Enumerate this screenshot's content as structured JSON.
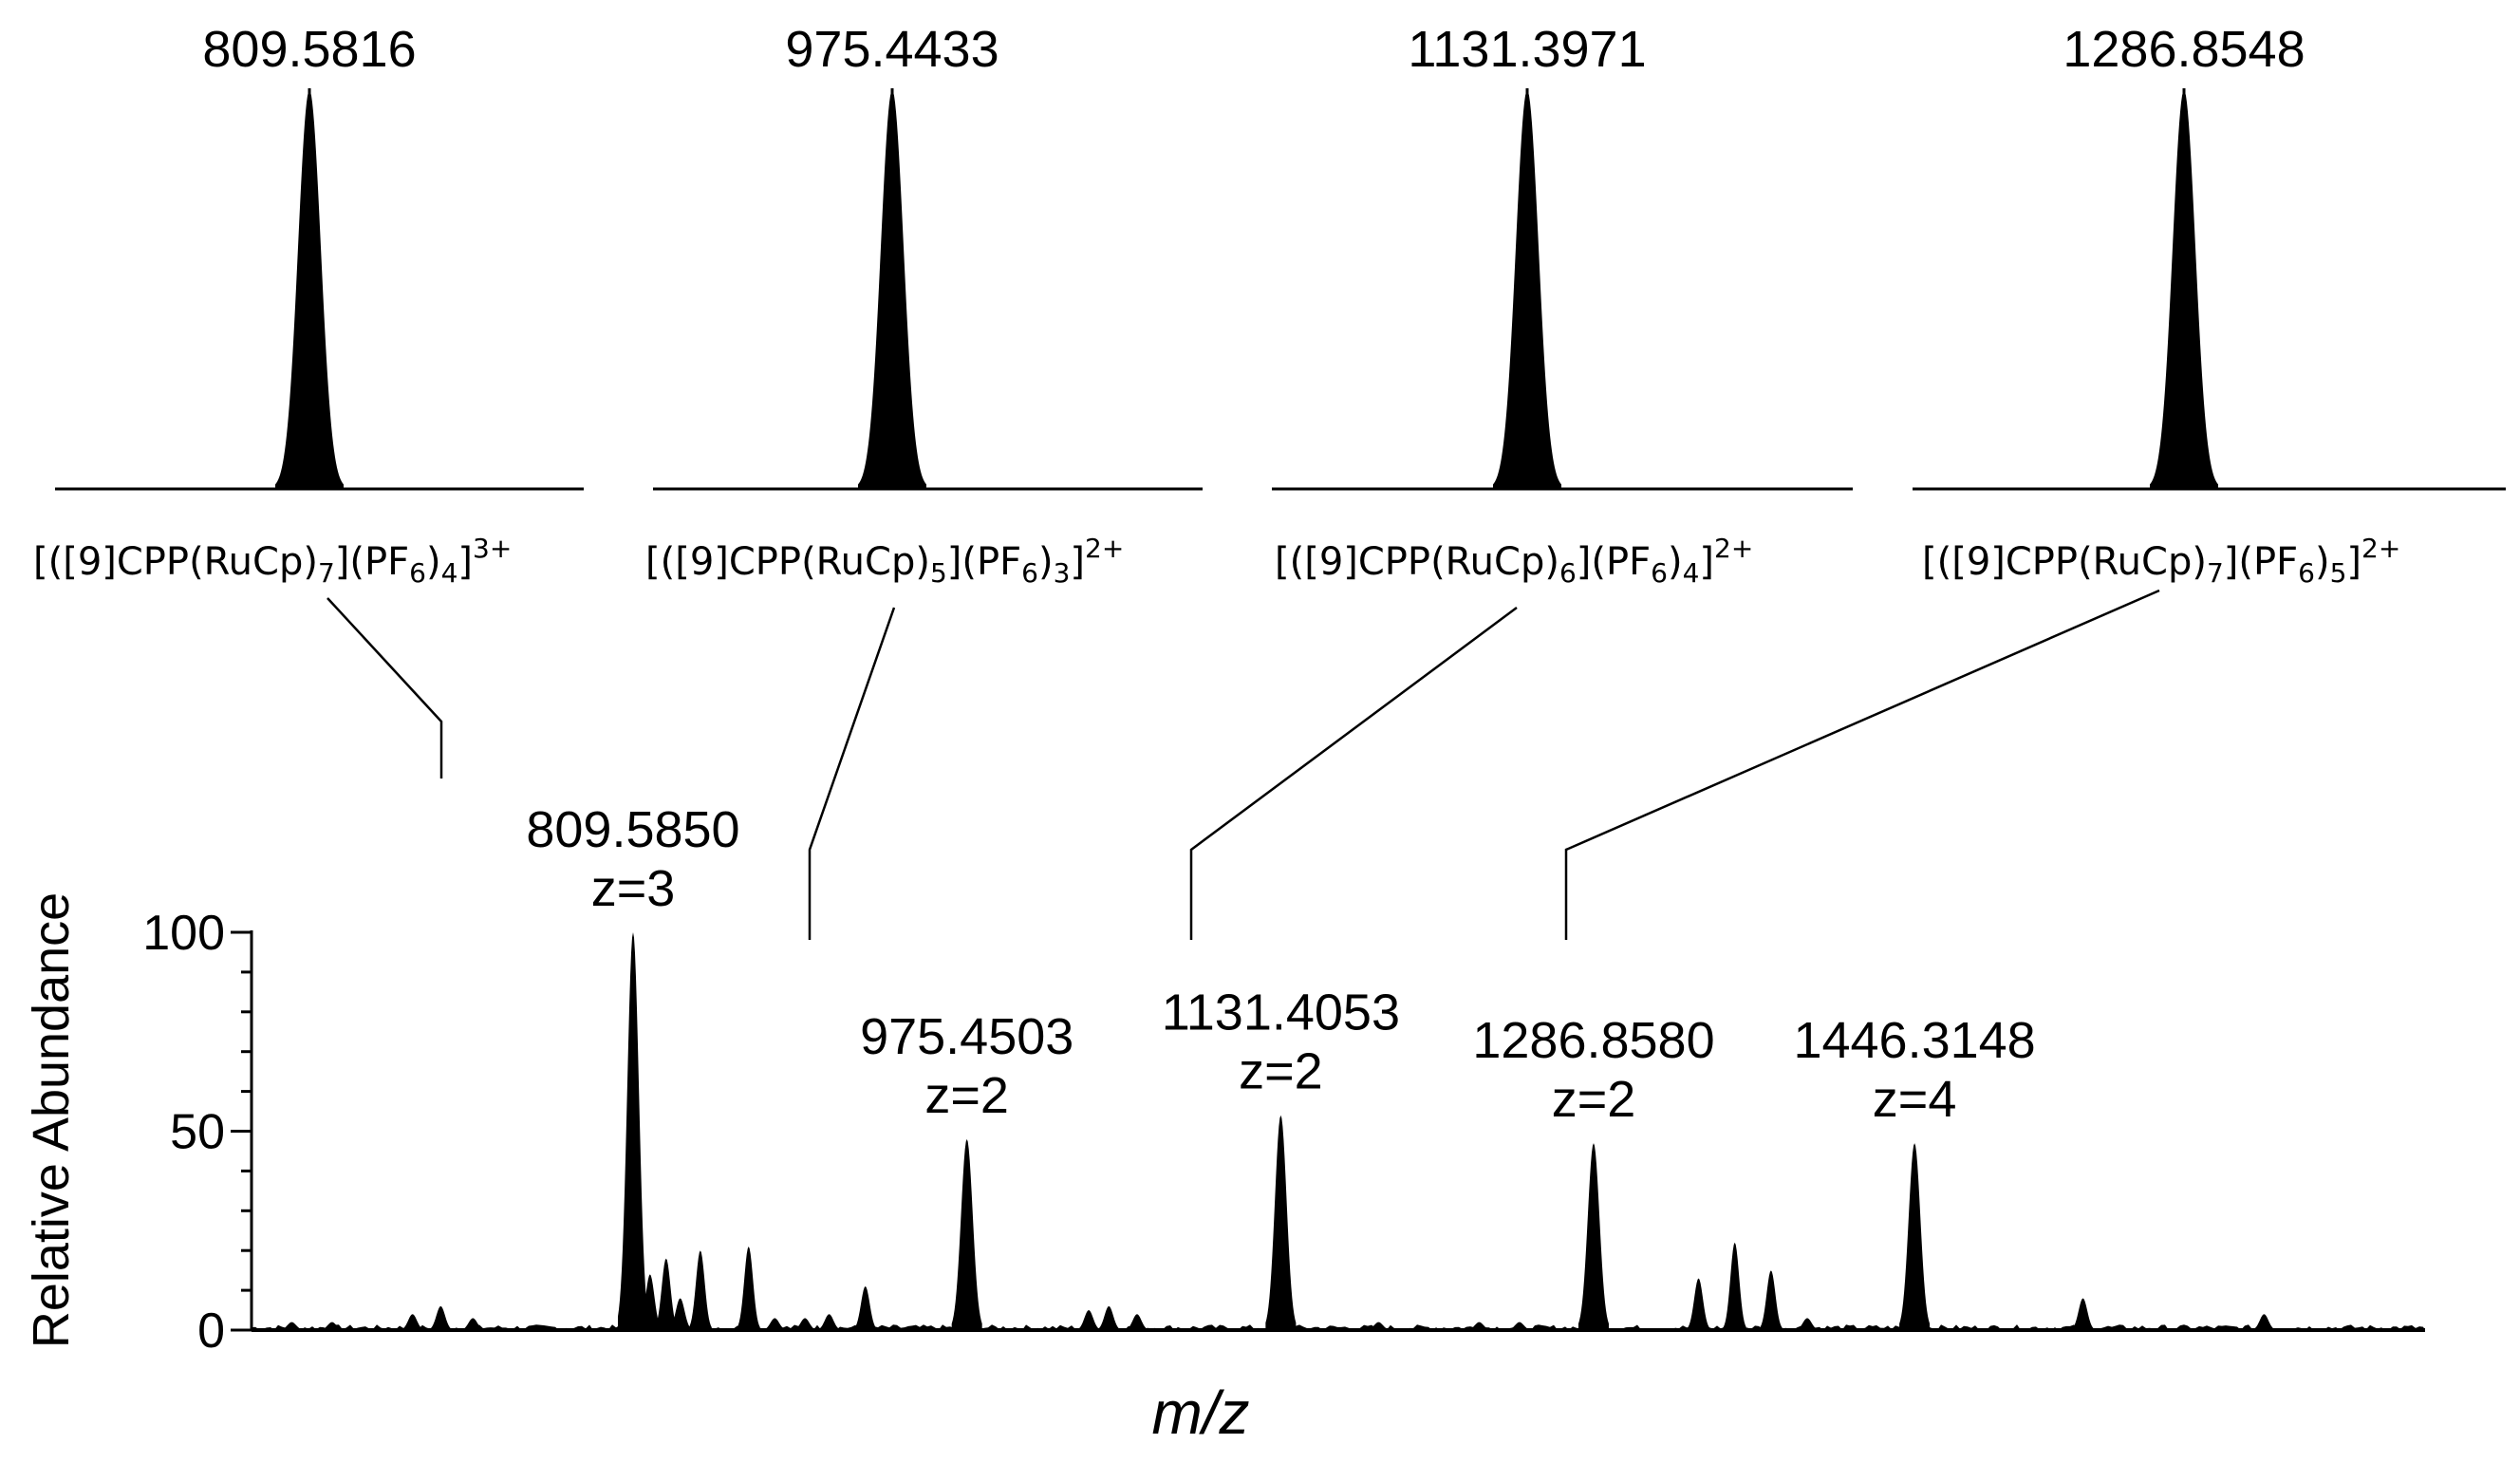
{
  "chart_data": [
    {
      "type": "line",
      "panel": "isotope-pattern",
      "peak_label": "809.5816",
      "peak_center": 809.5816,
      "formula": {
        "prefix": "[(",
        "bracket": "[9]CPP",
        "ru": "(RuCp)",
        "ru_sub": "7",
        "pf6_open": "](PF",
        "pf6_sub": "6",
        "pf6_close": ")",
        "pf6_count": "4",
        "end": "]",
        "charge": "3+"
      }
    },
    {
      "type": "line",
      "panel": "isotope-pattern",
      "peak_label": "975.4433",
      "peak_center": 975.4433,
      "formula": {
        "prefix": "[(",
        "bracket": "[9]CPP",
        "ru": "(RuCp)",
        "ru_sub": "5",
        "pf6_open": "](PF",
        "pf6_sub": "6",
        "pf6_close": ")",
        "pf6_count": "3",
        "end": "]",
        "charge": "2+"
      }
    },
    {
      "type": "line",
      "panel": "isotope-pattern",
      "peak_label": "1131.3971",
      "peak_center": 1131.3971,
      "formula": {
        "prefix": "[(",
        "bracket": "[9]CPP",
        "ru": "(RuCp)",
        "ru_sub": "6",
        "pf6_open": "](PF",
        "pf6_sub": "6",
        "pf6_close": ")",
        "pf6_count": "4",
        "end": "]",
        "charge": "2+"
      }
    },
    {
      "type": "line",
      "panel": "isotope-pattern",
      "peak_label": "1286.8548",
      "peak_center": 1286.8548,
      "formula": {
        "prefix": "[(",
        "bracket": "[9]CPP",
        "ru": "(RuCp)",
        "ru_sub": "7",
        "pf6_open": "](PF",
        "pf6_sub": "6",
        "pf6_close": ")",
        "pf6_count": "5",
        "end": "]",
        "charge": "2+"
      }
    },
    {
      "type": "line",
      "panel": "mass-spectrum",
      "xlabel": "m/z",
      "ylabel": "Relative Abundance",
      "ylim": [
        0,
        100
      ],
      "xlim": [
        620,
        1700
      ],
      "yticks": [
        {
          "value": 0,
          "label": "0"
        },
        {
          "value": 50,
          "label": "50"
        },
        {
          "value": 100,
          "label": "100"
        }
      ],
      "grid": false,
      "labeled_peaks": [
        {
          "mz": 809.585,
          "label": "809.5850",
          "charge": "z=3",
          "intensity": 100
        },
        {
          "mz": 975.4503,
          "label": "975.4503",
          "charge": "z=2",
          "intensity": 48
        },
        {
          "mz": 1131.4053,
          "label": "1131.4053",
          "charge": "z=2",
          "intensity": 54
        },
        {
          "mz": 1286.858,
          "label": "1286.8580",
          "charge": "z=2",
          "intensity": 47
        },
        {
          "mz": 1446.3148,
          "label": "1446.3148",
          "charge": "z=4",
          "intensity": 47
        }
      ],
      "minor_peaks": [
        {
          "mz": 640,
          "intensity": 2
        },
        {
          "mz": 660,
          "intensity": 2
        },
        {
          "mz": 700,
          "intensity": 4
        },
        {
          "mz": 714,
          "intensity": 6
        },
        {
          "mz": 730,
          "intensity": 3
        },
        {
          "mz": 818,
          "intensity": 14
        },
        {
          "mz": 826,
          "intensity": 18
        },
        {
          "mz": 833,
          "intensity": 8
        },
        {
          "mz": 843,
          "intensity": 20
        },
        {
          "mz": 867,
          "intensity": 21
        },
        {
          "mz": 880,
          "intensity": 3
        },
        {
          "mz": 895,
          "intensity": 3
        },
        {
          "mz": 907,
          "intensity": 4
        },
        {
          "mz": 925,
          "intensity": 11
        },
        {
          "mz": 1036,
          "intensity": 5
        },
        {
          "mz": 1046,
          "intensity": 6
        },
        {
          "mz": 1060,
          "intensity": 4
        },
        {
          "mz": 1180,
          "intensity": 2
        },
        {
          "mz": 1230,
          "intensity": 2
        },
        {
          "mz": 1250,
          "intensity": 2
        },
        {
          "mz": 1339,
          "intensity": 13
        },
        {
          "mz": 1357,
          "intensity": 22
        },
        {
          "mz": 1375,
          "intensity": 15
        },
        {
          "mz": 1393,
          "intensity": 3
        },
        {
          "mz": 1530,
          "intensity": 8
        },
        {
          "mz": 1620,
          "intensity": 4
        }
      ]
    }
  ]
}
